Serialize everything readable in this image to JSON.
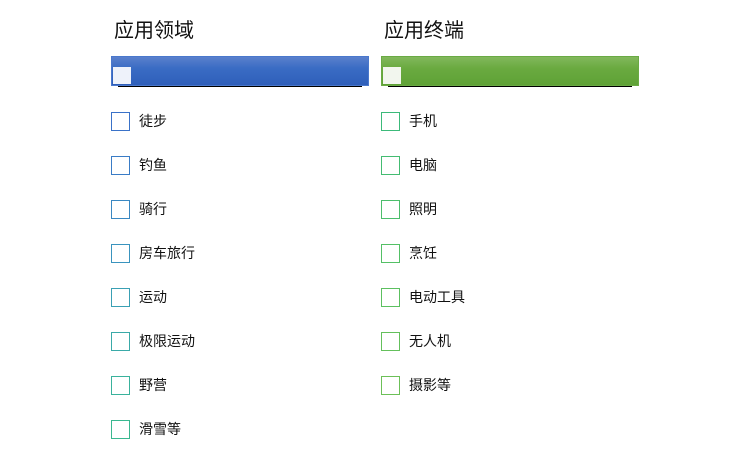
{
  "left": {
    "title": "应用领域",
    "bar_color": "#3a6cc4",
    "items": [
      {
        "label": "徒步",
        "color": "#3a72c8"
      },
      {
        "label": "钓鱼",
        "color": "#3a7cc6"
      },
      {
        "label": "骑行",
        "color": "#3a88c2"
      },
      {
        "label": "房车旅行",
        "color": "#3a94be"
      },
      {
        "label": "运动",
        "color": "#3aa0b4"
      },
      {
        "label": "极限运动",
        "color": "#3aaaa8"
      },
      {
        "label": "野营",
        "color": "#3ab29c"
      },
      {
        "label": "滑雪等",
        "color": "#3ab890"
      }
    ]
  },
  "right": {
    "title": "应用终端",
    "bar_color": "#6aaa40",
    "items": [
      {
        "label": "手机",
        "color": "#3cba7a"
      },
      {
        "label": "电脑",
        "color": "#44bc72"
      },
      {
        "label": "照明",
        "color": "#4cbe6c"
      },
      {
        "label": "烹饪",
        "color": "#54c066"
      },
      {
        "label": "电动工具",
        "color": "#5cc060"
      },
      {
        "label": "无人机",
        "color": "#64c05c"
      },
      {
        "label": "摄影等",
        "color": "#6cc058"
      }
    ]
  }
}
